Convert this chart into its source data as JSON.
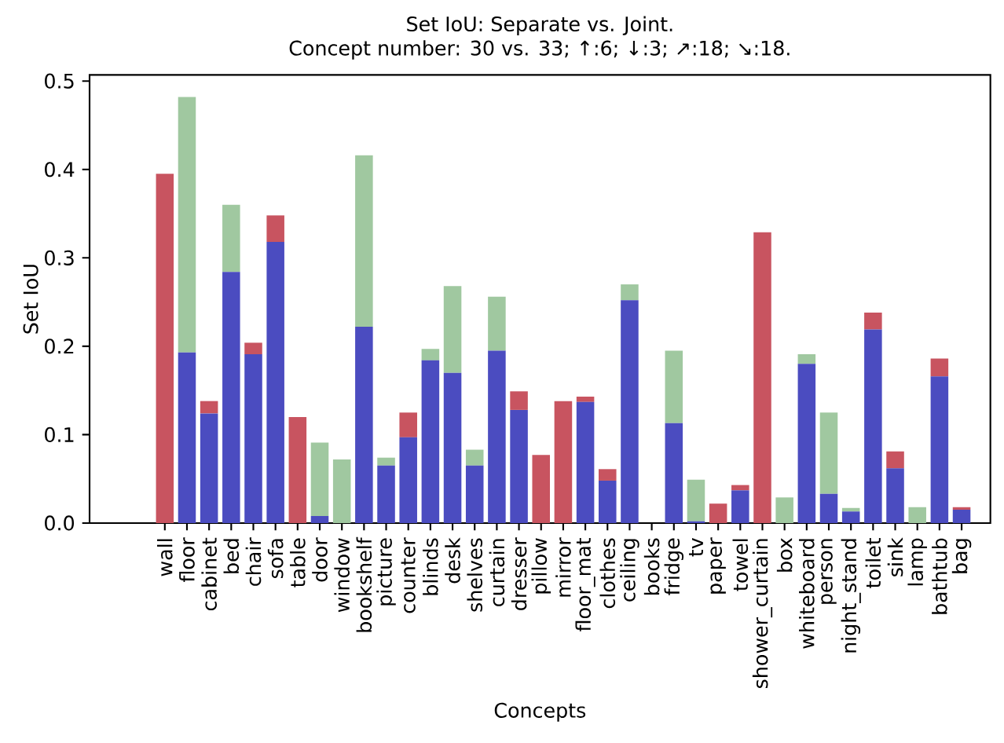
{
  "chart_data": {
    "type": "bar",
    "stacked": true,
    "title": "Set IoU: Separate vs. Joint.",
    "subtitle": "Concept number: 30 vs. 33;  ↑:6;  ↓:3;  ↗:18;  ↘:18.",
    "xlabel": "Concepts",
    "ylabel": "Set IoU",
    "categories": [
      "wall",
      "floor",
      "cabinet",
      "bed",
      "chair",
      "sofa",
      "table",
      "door",
      "window",
      "bookshelf",
      "picture",
      "counter",
      "blinds",
      "desk",
      "shelves",
      "curtain",
      "dresser",
      "pillow",
      "mirror",
      "floor_mat",
      "clothes",
      "ceiling",
      "books",
      "fridge",
      "tv",
      "paper",
      "towel",
      "shower_curtain",
      "box",
      "whiteboard",
      "person",
      "night_stand",
      "toilet",
      "sink",
      "lamp",
      "bathtub",
      "bag"
    ],
    "series": [
      {
        "color": "#4b4cc0",
        "values": [
          0,
          0.193,
          0.124,
          0.284,
          0.191,
          0.318,
          0,
          0.008,
          0,
          0.222,
          0.065,
          0.097,
          0.184,
          0.17,
          0.065,
          0.195,
          0.128,
          0,
          0,
          0.137,
          0.048,
          0.252,
          0,
          0.113,
          0.002,
          0,
          0.037,
          0,
          0,
          0.18,
          0.033,
          0.013,
          0.219,
          0.062,
          0,
          0.166,
          0.015
        ]
      },
      {
        "color": "#c85460",
        "values": [
          0.395,
          0,
          0.014,
          0,
          0.013,
          0.03,
          0.12,
          0,
          0,
          0,
          0,
          0.028,
          0,
          0,
          0,
          0,
          0.021,
          0.077,
          0.138,
          0.006,
          0.013,
          0,
          0,
          0,
          0,
          0.022,
          0.006,
          0.329,
          0,
          0,
          0,
          0,
          0.019,
          0.019,
          0,
          0.02,
          0.003
        ]
      },
      {
        "color": "#a0c8a0",
        "values": [
          0,
          0.289,
          0,
          0.076,
          0,
          0,
          0,
          0.083,
          0.072,
          0.194,
          0.009,
          0,
          0.013,
          0.098,
          0.018,
          0.061,
          0,
          0,
          0,
          0,
          0,
          0.018,
          0,
          0.082,
          0.047,
          0,
          0,
          0,
          0.029,
          0.011,
          0.092,
          0.004,
          0,
          0,
          0.018,
          0,
          0
        ]
      }
    ],
    "ylim": [
      0,
      0.507
    ],
    "yticks": [
      {
        "value": 0,
        "label": "0.0"
      },
      {
        "value": 0.1,
        "label": "0.1"
      },
      {
        "value": 0.2,
        "label": "0.2"
      },
      {
        "value": 0.3,
        "label": "0.3"
      },
      {
        "value": 0.4,
        "label": "0.4"
      },
      {
        "value": 0.5,
        "label": "0.5"
      }
    ]
  }
}
